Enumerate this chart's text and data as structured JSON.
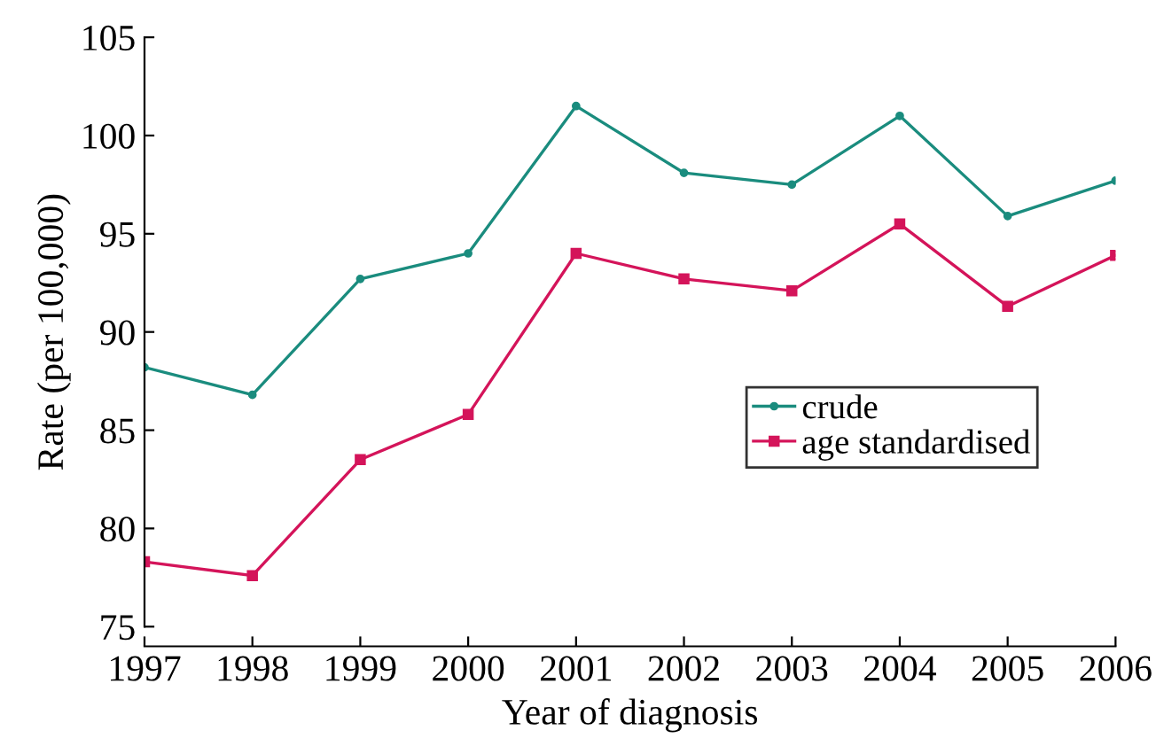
{
  "chart_data": {
    "type": "line",
    "xlabel": "Year of diagnosis",
    "ylabel": "Rate (per 100,000)",
    "x": [
      1997,
      1998,
      1999,
      2000,
      2001,
      2002,
      2003,
      2004,
      2005,
      2006
    ],
    "series": [
      {
        "name": "crude",
        "color": "#1a8c7e",
        "marker": "circle",
        "values": [
          88.2,
          86.8,
          92.7,
          94.0,
          101.5,
          98.1,
          97.5,
          101.0,
          95.9,
          97.7
        ]
      },
      {
        "name": "age standardised",
        "color": "#d4145a",
        "marker": "square",
        "values": [
          78.3,
          77.6,
          83.5,
          85.8,
          94.0,
          92.7,
          92.1,
          95.5,
          91.3,
          93.9
        ]
      }
    ],
    "xlim": [
      1997,
      2006
    ],
    "xticks": [
      1997,
      1998,
      1999,
      2000,
      2001,
      2002,
      2003,
      2004,
      2005,
      2006
    ],
    "ylim": [
      75,
      105
    ],
    "yticks": [
      75,
      80,
      85,
      90,
      95,
      100,
      105
    ],
    "grid": false,
    "legend": "right",
    "line_style": "solid"
  }
}
